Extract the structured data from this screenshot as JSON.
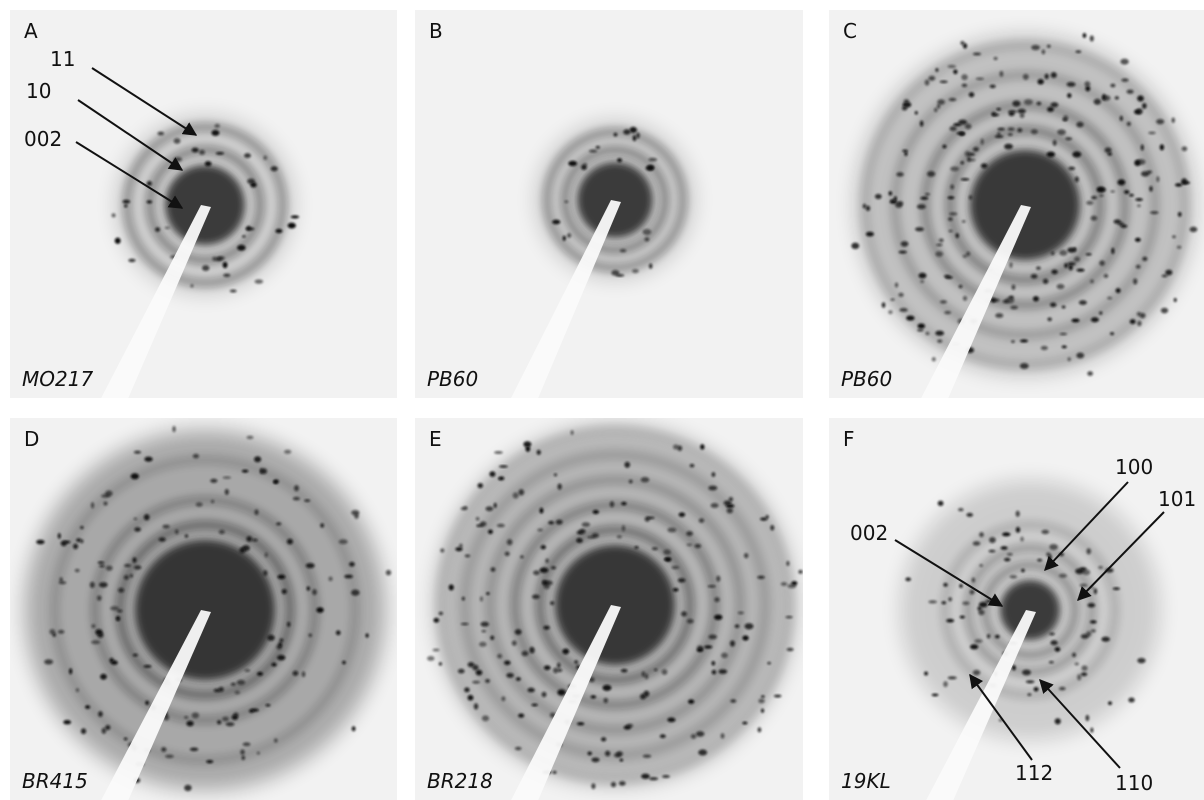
{
  "panels": [
    {
      "letter": "A",
      "sample": "MO217",
      "annotations": [
        "11",
        "10",
        "002"
      ]
    },
    {
      "letter": "B",
      "sample": "PB60"
    },
    {
      "letter": "C",
      "sample": "PB60"
    },
    {
      "letter": "D",
      "sample": "BR415"
    },
    {
      "letter": "E",
      "sample": "BR218"
    },
    {
      "letter": "F",
      "sample": "19KL",
      "annotations": [
        "100",
        "101",
        "002",
        "112",
        "110"
      ]
    }
  ]
}
